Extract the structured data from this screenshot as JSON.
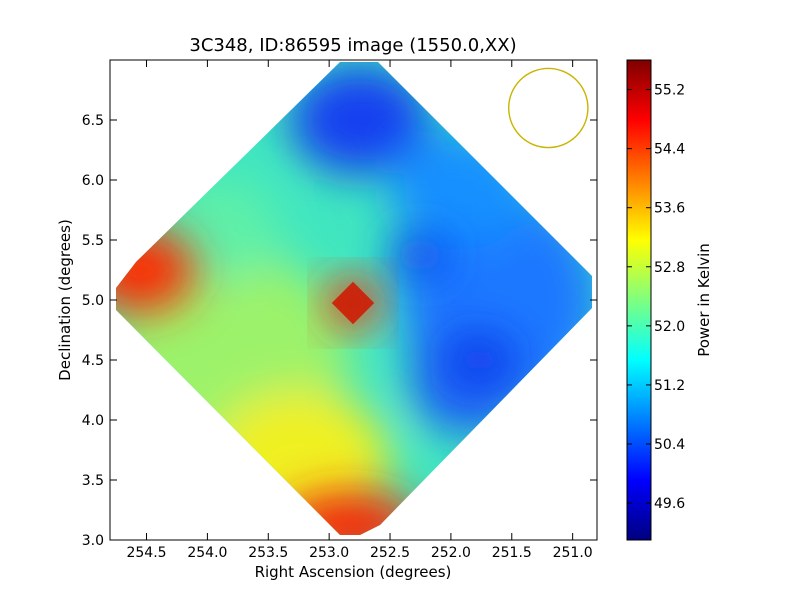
{
  "chart_data": {
    "type": "heatmap",
    "title": "3C348, ID:86595 image (1550.0,XX)",
    "xlabel": "Right Ascension (degrees)",
    "ylabel": "Declination (degrees)",
    "xlim": [
      254.8,
      250.8
    ],
    "ylim": [
      3.0,
      7.0
    ],
    "x_ticks": [
      254.5,
      254.0,
      253.5,
      253.0,
      252.5,
      252.0,
      251.5,
      251.0
    ],
    "x_tick_labels": [
      "254.5",
      "254.0",
      "253.5",
      "253.0",
      "252.5",
      "252.0",
      "251.5",
      "251.0"
    ],
    "y_ticks": [
      3.0,
      3.5,
      4.0,
      4.5,
      5.0,
      5.5,
      6.0,
      6.5
    ],
    "y_tick_labels": [
      "3.0",
      "3.5",
      "4.0",
      "4.5",
      "5.0",
      "5.5",
      "6.0",
      "6.5"
    ],
    "colorbar": {
      "label": "Power in Kelvin",
      "range": [
        49.1,
        55.6
      ],
      "ticks": [
        49.6,
        50.4,
        51.2,
        52.0,
        52.8,
        53.6,
        54.4,
        55.2
      ],
      "tick_labels": [
        "49.6",
        "50.4",
        "51.2",
        "52.0",
        "52.8",
        "53.6",
        "54.4",
        "55.2"
      ],
      "colormap": "jet"
    },
    "map_center": [
      252.8,
      4.95
    ],
    "map_corners": {
      "top": [
        252.8,
        6.95
      ],
      "right": [
        250.8,
        4.95
      ],
      "bottom": [
        252.8,
        3.05
      ],
      "left": [
        254.8,
        4.95
      ]
    },
    "features": [
      {
        "ra": 252.8,
        "dec": 5.0,
        "value": 54.6
      },
      {
        "ra": 254.6,
        "dec": 5.25,
        "value": 54.8
      },
      {
        "ra": 252.95,
        "dec": 3.15,
        "value": 55.0
      },
      {
        "ra": 253.3,
        "dec": 6.4,
        "value": 50.0
      },
      {
        "ra": 252.3,
        "dec": 5.3,
        "value": 50.6
      },
      {
        "ra": 251.9,
        "dec": 4.5,
        "value": 50.5
      },
      {
        "ra": 253.0,
        "dec": 4.0,
        "value": 53.0
      },
      {
        "ra": 251.0,
        "dec": 5.0,
        "value": 50.9
      }
    ],
    "beam": {
      "ra": 251.2,
      "dec": 6.6,
      "radius_deg": 0.33,
      "color": "#c8b400"
    }
  }
}
